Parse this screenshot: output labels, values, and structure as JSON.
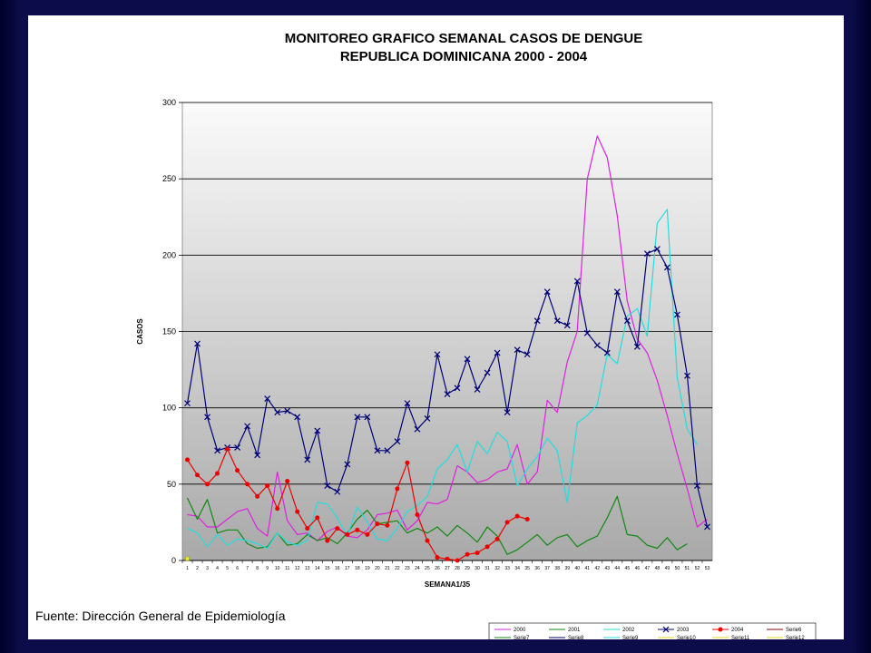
{
  "source_note": "Fuente: Dirección General de Epidemiología",
  "chart_data": {
    "type": "line",
    "title": "MONITOREO GRAFICO SEMANAL CASOS DE DENGUE",
    "subtitle": "REPUBLICA DOMINICANA 2000 - 2004",
    "xlabel": "SEMANA1/35",
    "ylabel": "CASOS",
    "ylim": [
      0,
      300
    ],
    "yticks": [
      "0",
      "50",
      "100",
      "150",
      "200",
      "250",
      "300"
    ],
    "grid": true,
    "legend_placement": "bottom",
    "x": [
      "1",
      "2",
      "3",
      "4",
      "5",
      "6",
      "7",
      "8",
      "9",
      "10",
      "11",
      "12",
      "13",
      "14",
      "15",
      "16",
      "17",
      "18",
      "19",
      "20",
      "21",
      "22",
      "23",
      "24",
      "25",
      "26",
      "27",
      "28",
      "29",
      "30",
      "31",
      "32",
      "33",
      "34",
      "35",
      "36",
      "37",
      "38",
      "39",
      "40",
      "41",
      "42",
      "43",
      "44",
      "45",
      "46",
      "47",
      "48",
      "49",
      "50",
      "51",
      "52",
      "53"
    ],
    "series": [
      {
        "name": "2000",
        "color": "#dd22dd",
        "marker": "none",
        "values": [
          30,
          29,
          22,
          22,
          27,
          32,
          34,
          21,
          16,
          58,
          26,
          17,
          18,
          13,
          19,
          22,
          16,
          15,
          20,
          30,
          31,
          33,
          20,
          26,
          38,
          37,
          40,
          62,
          58,
          51,
          53,
          58,
          60,
          76,
          50,
          58,
          105,
          97,
          130,
          150,
          250,
          278,
          264,
          226,
          170,
          145,
          136,
          118,
          95,
          70,
          47,
          22,
          27
        ]
      },
      {
        "name": "2001",
        "color": "#118811",
        "marker": "none",
        "values": [
          41,
          27,
          40,
          18,
          20,
          20,
          11,
          8,
          9,
          18,
          10,
          11,
          17,
          13,
          15,
          11,
          18,
          27,
          33,
          24,
          25,
          26,
          18,
          21,
          18,
          22,
          16,
          23,
          18,
          12,
          22,
          16,
          4,
          7,
          12,
          17,
          10,
          15,
          17,
          9,
          13,
          16,
          28,
          42,
          17,
          16,
          10,
          8,
          15,
          7,
          11,
          null,
          null
        ]
      },
      {
        "name": "2002",
        "color": "#22dddd",
        "marker": "none",
        "values": [
          21,
          18,
          9,
          17,
          10,
          14,
          13,
          11,
          8,
          18,
          12,
          10,
          13,
          38,
          37,
          28,
          16,
          35,
          25,
          14,
          13,
          21,
          32,
          36,
          42,
          60,
          66,
          76,
          58,
          78,
          70,
          84,
          78,
          49,
          60,
          68,
          80,
          72,
          38,
          90,
          95,
          102,
          135,
          129,
          160,
          165,
          147,
          221,
          230,
          120,
          86,
          76,
          null
        ]
      },
      {
        "name": "2003",
        "color": "#000077",
        "marker": "x",
        "values": [
          103,
          142,
          94,
          72,
          74,
          74,
          88,
          69,
          106,
          97,
          98,
          94,
          66,
          85,
          49,
          45,
          63,
          94,
          94,
          72,
          72,
          78,
          103,
          86,
          93,
          135,
          109,
          113,
          132,
          112,
          123,
          136,
          97,
          138,
          135,
          157,
          176,
          157,
          154,
          183,
          149,
          141,
          136,
          176,
          157,
          140,
          201,
          204,
          192,
          161,
          121,
          49,
          22
        ]
      },
      {
        "name": "2004",
        "color": "#ee0000",
        "marker": "dot",
        "values": [
          66,
          56,
          50,
          57,
          73,
          59,
          50,
          42,
          49,
          34,
          52,
          32,
          21,
          28,
          13,
          21,
          17,
          20,
          17,
          24,
          23,
          47,
          64,
          30,
          13,
          2,
          1,
          0,
          4,
          5,
          9,
          14,
          25,
          29,
          27,
          null,
          null,
          null,
          null,
          null,
          null,
          null,
          null,
          null,
          null,
          null,
          null,
          null,
          null,
          null,
          null,
          null,
          null
        ]
      }
    ],
    "legend": [
      {
        "name": "2000",
        "color": "#dd22dd",
        "marker": "none"
      },
      {
        "name": "2001",
        "color": "#118811",
        "marker": "none"
      },
      {
        "name": "2002",
        "color": "#22dddd",
        "marker": "none"
      },
      {
        "name": "2003",
        "color": "#000077",
        "marker": "x"
      },
      {
        "name": "2004",
        "color": "#ee0000",
        "marker": "dot"
      },
      {
        "name": "Serie6",
        "color": "#880000",
        "marker": "none"
      },
      {
        "name": "Serie7",
        "color": "#118811",
        "marker": "none"
      },
      {
        "name": "Serie8",
        "color": "#000077",
        "marker": "none"
      },
      {
        "name": "Serie9",
        "color": "#22dddd",
        "marker": "none"
      },
      {
        "name": "Serie10",
        "color": "#dddd22",
        "marker": "none"
      },
      {
        "name": "Serie11",
        "color": "#dddd22",
        "marker": "none"
      },
      {
        "name": "Serie12",
        "color": "#dddd22",
        "marker": "none"
      }
    ]
  }
}
